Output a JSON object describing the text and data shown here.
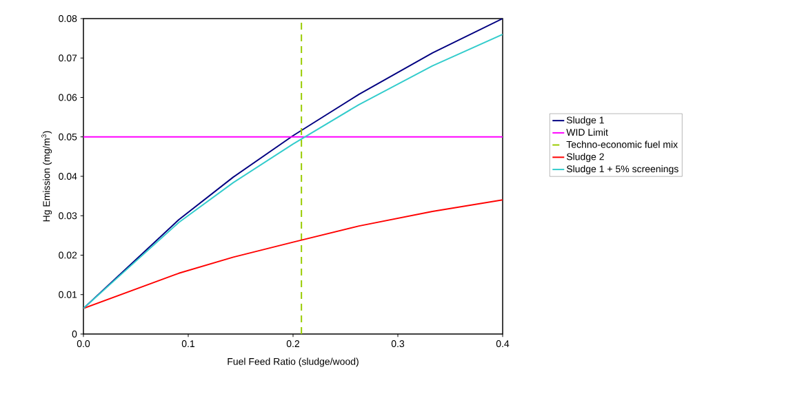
{
  "chart_data": {
    "type": "line",
    "xlabel": "Fuel Feed Ratio (sludge/wood)",
    "ylabel": "Hg Emission (mg/m$^{3}$)",
    "x": [
      0,
      0.091,
      0.143,
      0.2,
      0.263,
      0.333,
      0.4
    ],
    "series": [
      {
        "name": "Sludge 1",
        "color": "#000080",
        "values": [
          0.0065,
          0.029,
          0.0398,
          0.0503,
          0.0608,
          0.0713,
          0.08
        ]
      },
      {
        "name": "WID Limit",
        "color": "#ff00ff",
        "x": [
          0,
          0.4
        ],
        "values": [
          0.05,
          0.05
        ]
      },
      {
        "name": "Techno-economic fuel mix",
        "color": "#99cc00",
        "x": [
          0.208,
          0.208
        ],
        "values": [
          0,
          0.08
        ],
        "line_style": "dashed"
      },
      {
        "name": "Sludge 2",
        "color": "#ff0000",
        "values": [
          0.0065,
          0.0154,
          0.0195,
          0.0233,
          0.0274,
          0.0311,
          0.034
        ]
      },
      {
        "name": "Sludge 1 + 5% screenings",
        "color": "#33cccc",
        "values": [
          0.0065,
          0.0283,
          0.0384,
          0.0482,
          0.0582,
          0.068,
          0.076
        ]
      }
    ],
    "xlim": [
      0,
      0.4
    ],
    "ylim": [
      0,
      0.08
    ],
    "xticks": [
      {
        "value": 0,
        "label": "0.0"
      },
      {
        "value": 0.1,
        "label": "0.1"
      },
      {
        "value": 0.2,
        "label": "0.2"
      },
      {
        "value": 0.3,
        "label": "0.3"
      },
      {
        "value": 0.4,
        "label": "0.4"
      }
    ],
    "yticks": [
      0,
      0.01,
      0.02,
      0.03,
      0.04,
      0.05,
      0.06,
      0.07,
      0.08
    ],
    "grid": false,
    "legend": "right",
    "marker": "none",
    "line_style": "solid"
  }
}
